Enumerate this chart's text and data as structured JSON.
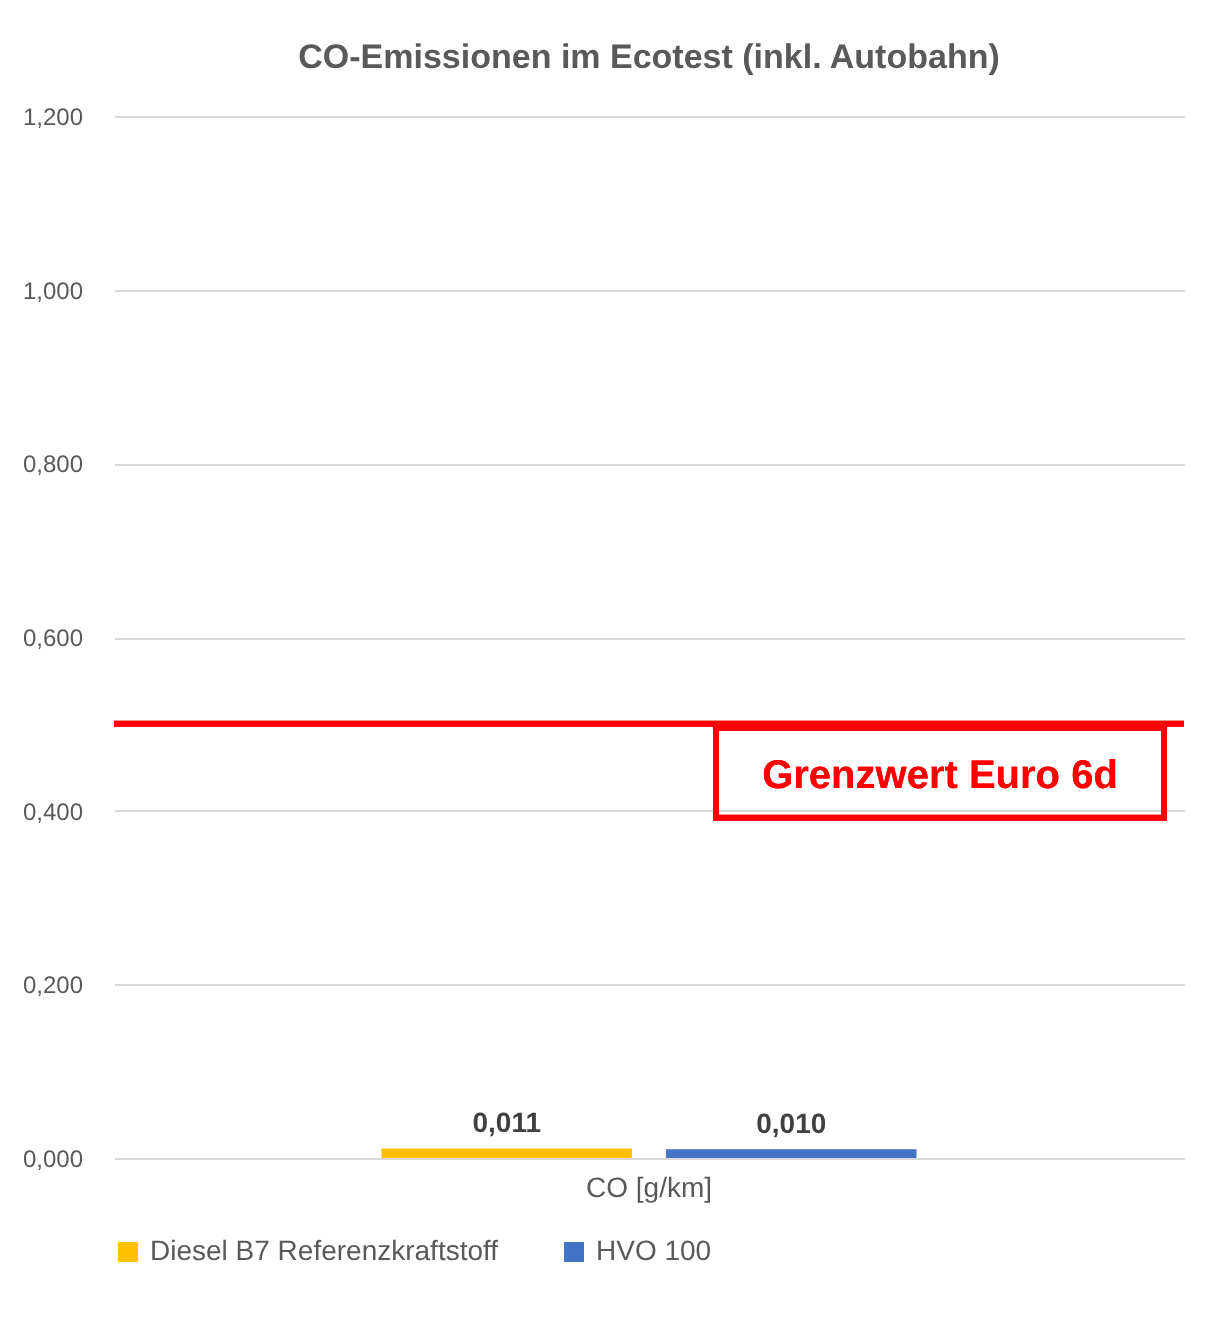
{
  "chart_data": {
    "type": "bar",
    "title": "CO-Emissionen im Ecotest (inkl. Autobahn)",
    "categories": [
      "CO [g/km]"
    ],
    "series": [
      {
        "name": "Diesel B7 Referenzkraftstoff",
        "color": "#ffc000",
        "values": [
          0.011
        ],
        "value_labels": [
          "0,011"
        ]
      },
      {
        "name": "HVO 100",
        "color": "#4472c4",
        "values": [
          0.01
        ],
        "value_labels": [
          "0,010"
        ]
      }
    ],
    "ylim": [
      0,
      1.2
    ],
    "yticks": [
      {
        "value": 0,
        "label": "0,000"
      },
      {
        "value": 0.2,
        "label": "0,200"
      },
      {
        "value": 0.4,
        "label": "0,400"
      },
      {
        "value": 0.6,
        "label": "0,600"
      },
      {
        "value": 0.8,
        "label": "0,800"
      },
      {
        "value": 1.0,
        "label": "1,000"
      },
      {
        "value": 1.2,
        "label": "1,200"
      }
    ],
    "ref_lines": [
      {
        "axis": "y",
        "value": 0.5,
        "label": "Grenzwert Euro 6d",
        "color": "#ff0000"
      }
    ],
    "grid": "y",
    "legend": "bottom"
  }
}
